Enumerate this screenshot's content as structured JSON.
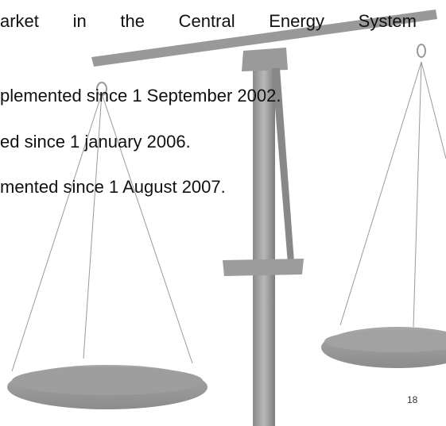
{
  "lines": [
    "arket in the Central Energy System",
    "plemented since 1 September 2002.",
    "ed since 1 january 2006.",
    "mented since 1 August 2007."
  ],
  "page_number": "18"
}
